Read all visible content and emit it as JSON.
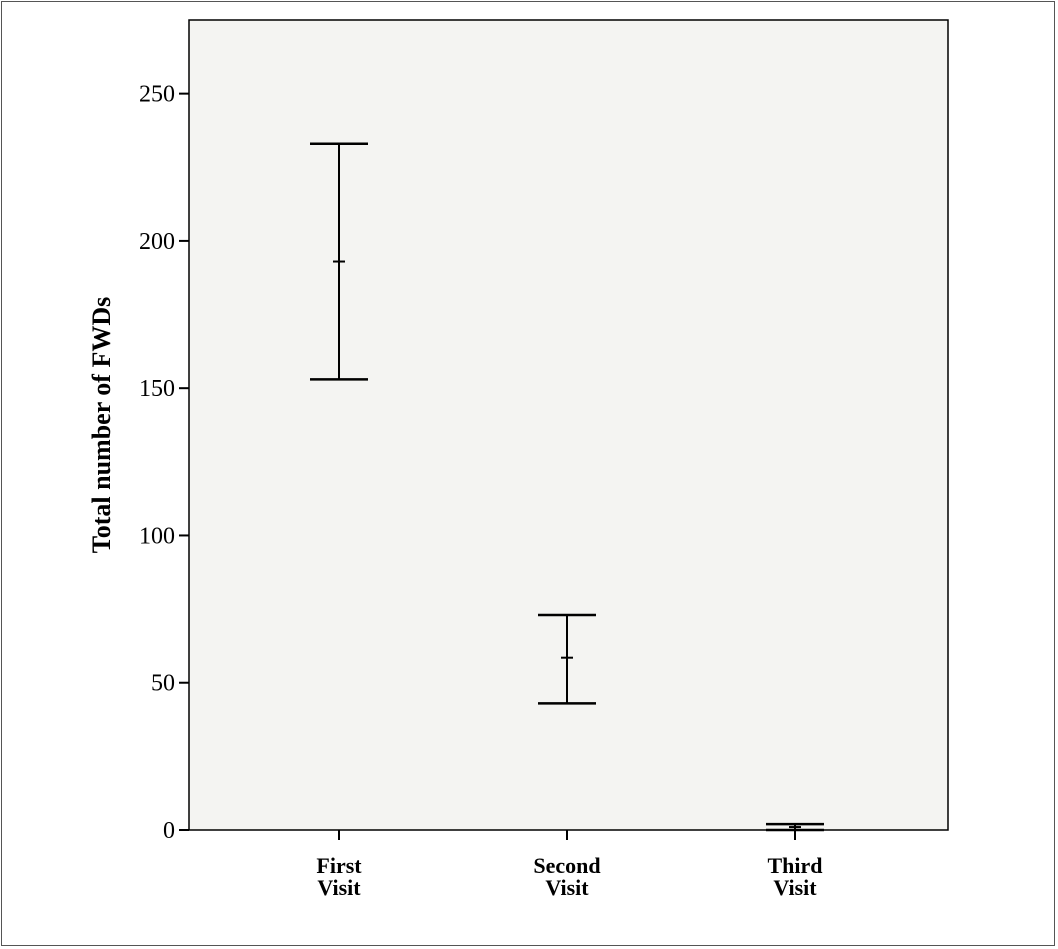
{
  "chart_data": {
    "type": "errorbar",
    "title": "",
    "ylabel": "Total number of FWDs",
    "xlabel": "",
    "ylim": [
      0,
      275
    ],
    "yticks": [
      0,
      50,
      100,
      150,
      200,
      250
    ],
    "categories": [
      [
        "First",
        "Visit"
      ],
      [
        "Second",
        "Visit"
      ],
      [
        "Third",
        "Visit"
      ]
    ],
    "mean": [
      193,
      58.5,
      1
    ],
    "lower": [
      153,
      43,
      0
    ],
    "upper": [
      233,
      73,
      2
    ],
    "grid": false,
    "legend": "none",
    "colors": {
      "plot_background": "#f4f4f2",
      "marks": "#000000"
    }
  }
}
